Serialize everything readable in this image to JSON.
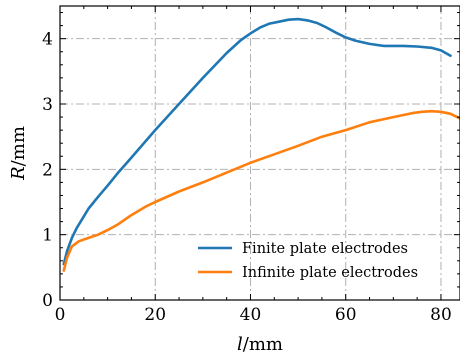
{
  "chart_data": {
    "type": "line",
    "xlabel": "l/mm",
    "ylabel": "R/mm",
    "xlim": [
      0,
      84
    ],
    "ylim": [
      0,
      4.5
    ],
    "xticks": [
      0,
      20,
      40,
      60,
      80
    ],
    "yticks": [
      0,
      1,
      2,
      3,
      4
    ],
    "xtick_labels": [
      "0",
      "20",
      "40",
      "60",
      "80"
    ],
    "ytick_labels": [
      "0",
      "1",
      "2",
      "3",
      "4"
    ],
    "grid": true,
    "legend_position": "bottom-right",
    "series": [
      {
        "name": "Finite plate electrodes",
        "color": "#1f77b4",
        "x": [
          0.8,
          1.5,
          2.5,
          3.5,
          5,
          6,
          8,
          10,
          12,
          15,
          20,
          25,
          30,
          35,
          38,
          40,
          42,
          44,
          46,
          48,
          50,
          52,
          54,
          56,
          58,
          60,
          62,
          65,
          68,
          70,
          72,
          75,
          78,
          80,
          82
        ],
        "y": [
          0.55,
          0.75,
          0.95,
          1.1,
          1.28,
          1.4,
          1.58,
          1.75,
          1.93,
          2.18,
          2.6,
          3.0,
          3.4,
          3.78,
          3.98,
          4.08,
          4.17,
          4.23,
          4.26,
          4.29,
          4.3,
          4.28,
          4.24,
          4.17,
          4.09,
          4.02,
          3.97,
          3.92,
          3.89,
          3.89,
          3.89,
          3.88,
          3.86,
          3.82,
          3.74
        ]
      },
      {
        "name": "Infinite plate electrodes",
        "color": "#ff7f0e",
        "x": [
          0.8,
          1.5,
          2.5,
          4,
          6,
          8,
          10,
          12,
          15,
          18,
          20,
          25,
          30,
          35,
          40,
          45,
          50,
          55,
          60,
          65,
          70,
          74,
          76,
          78,
          80,
          82,
          84
        ],
        "y": [
          0.45,
          0.65,
          0.82,
          0.9,
          0.95,
          1.0,
          1.07,
          1.15,
          1.3,
          1.43,
          1.5,
          1.66,
          1.8,
          1.95,
          2.1,
          2.23,
          2.36,
          2.5,
          2.6,
          2.72,
          2.8,
          2.86,
          2.88,
          2.89,
          2.88,
          2.85,
          2.78
        ]
      }
    ]
  }
}
